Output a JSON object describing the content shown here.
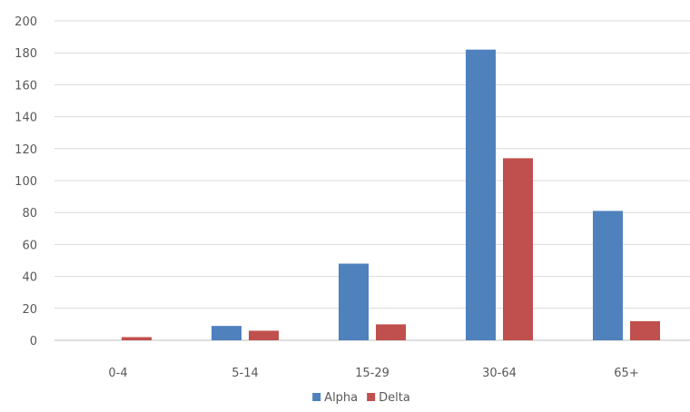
{
  "chart_data": {
    "type": "bar",
    "categories": [
      "0-4",
      "5-14",
      "15-29",
      "30-64",
      "65+"
    ],
    "series": [
      {
        "name": "Alpha",
        "color": "#4f81bd",
        "values": [
          0,
          9,
          48,
          182,
          81
        ]
      },
      {
        "name": "Delta",
        "color": "#c0504d",
        "values": [
          2,
          6,
          10,
          114,
          12
        ]
      }
    ],
    "title": "",
    "xlabel": "",
    "ylabel": "",
    "ylim": [
      0,
      200
    ],
    "yticks": [
      0,
      20,
      40,
      60,
      80,
      100,
      120,
      140,
      160,
      180,
      200
    ],
    "grid": true,
    "legend": "bottom-center"
  }
}
